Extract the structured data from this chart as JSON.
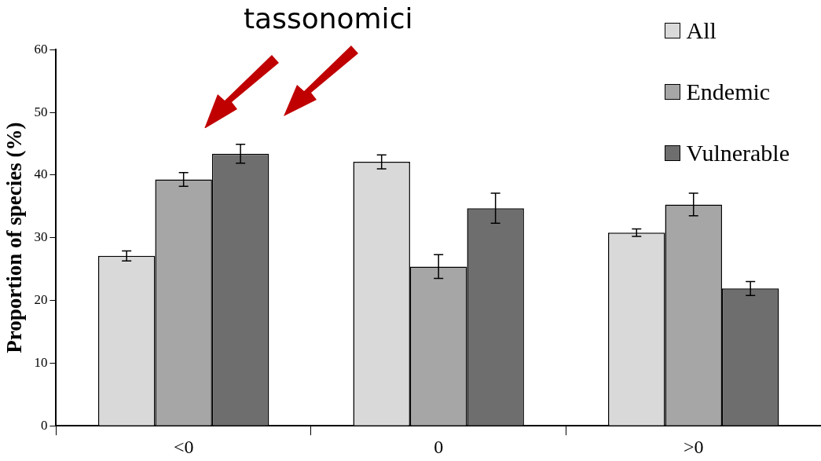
{
  "chart_data": {
    "type": "bar",
    "categories": [
      "<0",
      "0",
      ">0"
    ],
    "ylabel": "Proportion of species (%)",
    "annotations": [
      "tassonomici"
    ],
    "series": [
      {
        "name": "All",
        "color": "#d9d9d9",
        "values": [
          27.1,
          42.1,
          30.8
        ],
        "errors": [
          0.8,
          1.1,
          0.6
        ]
      },
      {
        "name": "Endemic",
        "color": "#a6a6a6",
        "values": [
          39.3,
          25.4,
          35.3
        ],
        "errors": [
          1.1,
          1.9,
          1.8
        ]
      },
      {
        "name": "Vulnerable",
        "color": "#6e6e6e",
        "values": [
          43.4,
          34.7,
          21.9
        ],
        "errors": [
          1.5,
          2.4,
          1.1
        ]
      }
    ],
    "ylim": [
      0,
      60
    ],
    "yticks": [
      0,
      10,
      20,
      30,
      40,
      50,
      60
    ],
    "grid": false,
    "legend": "top right"
  }
}
